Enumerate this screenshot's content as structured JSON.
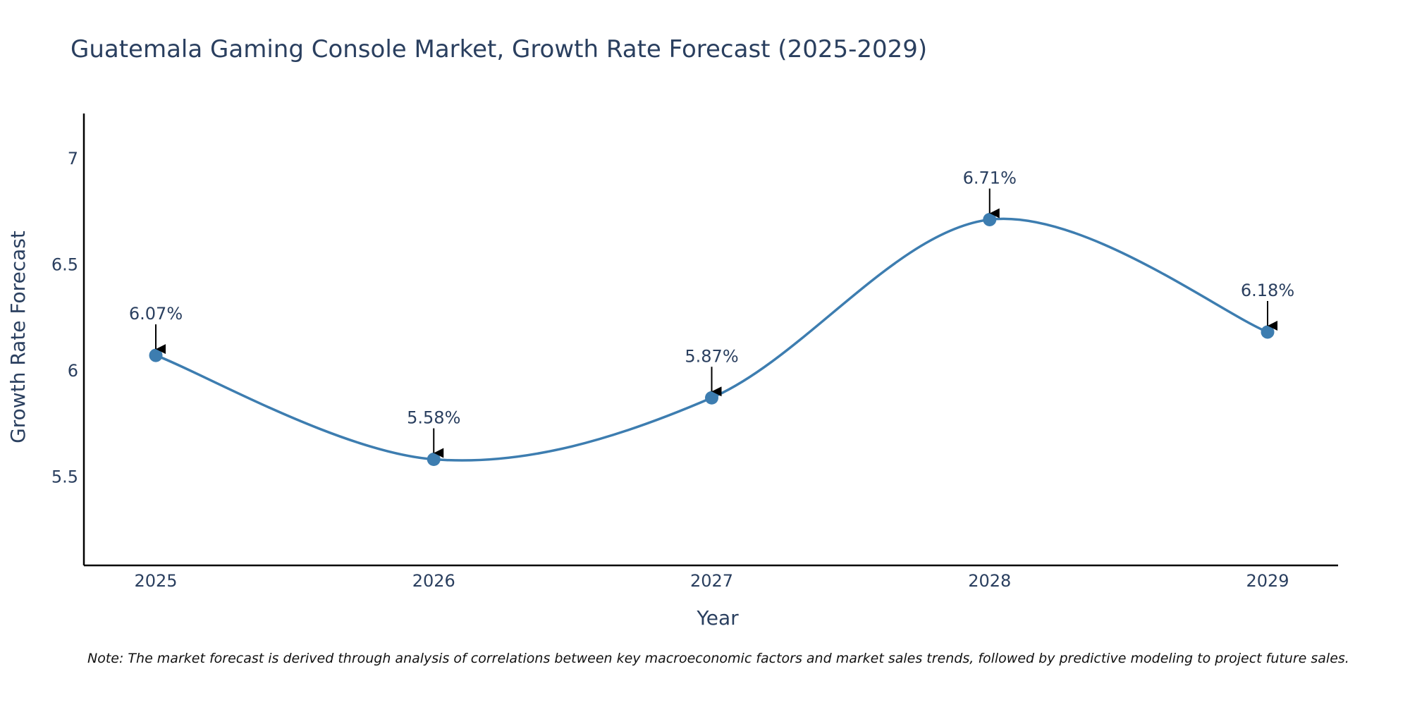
{
  "chart_data": {
    "type": "line",
    "title": "Guatemala Gaming Console Market, Growth Rate Forecast (2025-2029)",
    "xlabel": "Year",
    "ylabel": "Growth Rate Forecast",
    "categories": [
      "2025",
      "2026",
      "2027",
      "2028",
      "2029"
    ],
    "values": [
      6.07,
      5.58,
      5.87,
      6.71,
      6.18
    ],
    "data_labels": [
      "6.07%",
      "5.58%",
      "5.87%",
      "6.71%",
      "6.18%"
    ],
    "yticks": [
      5.5,
      6,
      6.5,
      7
    ],
    "ytick_labels": [
      "5.5",
      "6",
      "6.5",
      "7"
    ],
    "ylim": [
      5.08,
      7.21
    ],
    "line_shape": "spline",
    "grid": false,
    "series_color": "#3d7db0",
    "note": "Note: The market forecast is derived through analysis of correlations between key macroeconomic factors and market sales trends, followed by predictive modeling to project future sales."
  }
}
